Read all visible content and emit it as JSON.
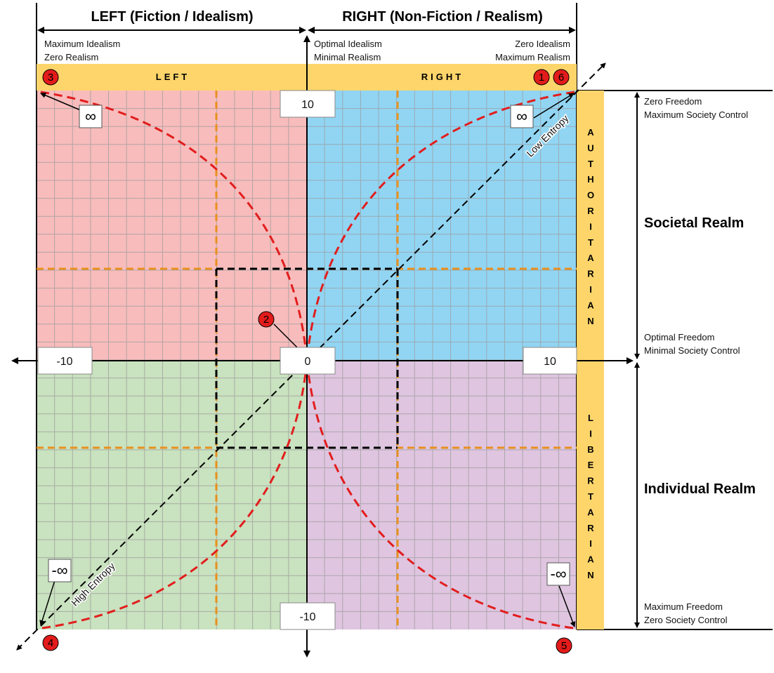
{
  "header": {
    "left_title": "LEFT (Fiction / Idealism)",
    "right_title": "RIGHT (Non-Fiction / Realism)"
  },
  "top_notes": {
    "left_line1": "Maximum Idealism",
    "left_line2": "Zero Realism",
    "mid_line1": "Optimal Idealism",
    "mid_line2": "Minimal Realism",
    "right_line1": "Zero Idealism",
    "right_line2": "Maximum  Realism"
  },
  "band": {
    "left_label": "LEFT",
    "right_label": "RIGHT"
  },
  "side": {
    "authoritarian": [
      "A",
      "U",
      "T",
      "H",
      "O",
      "R",
      "I",
      "T",
      "A",
      "R",
      "I",
      "A",
      "N"
    ],
    "libertarian": [
      "L",
      "I",
      "B",
      "E",
      "R",
      "T",
      "A",
      "R",
      "I",
      "A",
      "N"
    ]
  },
  "right_notes": {
    "top_line1": "Zero Freedom",
    "top_line2": "Maximum Society Control",
    "societal_realm": "Societal Realm",
    "mid_line1": "Optimal Freedom",
    "mid_line2": "Minimal Society Control",
    "individual_realm": "Individual Realm",
    "bottom_line1": "Maximum  Freedom",
    "bottom_line2": "Zero Society Control"
  },
  "axis_labels": {
    "top": "10",
    "bottom": "-10",
    "left": "-10",
    "right": "10",
    "origin": "0"
  },
  "infinity": {
    "top_left": "∞",
    "top_right": "∞",
    "bottom_left": "-∞",
    "bottom_right": "-∞"
  },
  "entropy": {
    "low": "Low Entropy",
    "high": "High Entropy"
  },
  "markers": [
    "1",
    "2",
    "3",
    "4",
    "5",
    "6"
  ],
  "colors": {
    "quad_top_left": "#f8bcbc",
    "quad_top_right": "#91d5f3",
    "quad_bottom_left": "#c9e2bf",
    "quad_bottom_right": "#dfc5e0",
    "band": "#fdd56b",
    "orange_dash": "#e8901e",
    "red_curve": "#e21d1d",
    "marker": "#e31b1b"
  }
}
